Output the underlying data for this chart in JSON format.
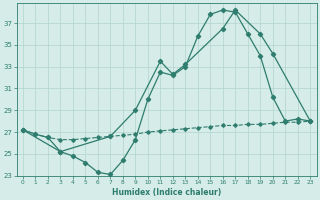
{
  "xlabel": "Humidex (Indice chaleur)",
  "color": "#2e7d6e",
  "bg_color": "#d5ece8",
  "grid_color": "#b0d4cc",
  "ylim": [
    23,
    38
  ],
  "xlim": [
    -0.5,
    23.5
  ],
  "yticks": [
    23,
    25,
    27,
    29,
    31,
    33,
    35,
    37
  ],
  "xticks": [
    0,
    1,
    2,
    3,
    4,
    5,
    6,
    7,
    8,
    9,
    10,
    11,
    12,
    13,
    14,
    15,
    16,
    17,
    18,
    19,
    20,
    21,
    22,
    23
  ],
  "line_flat_x": [
    0,
    1,
    2,
    3,
    4,
    5,
    6,
    7,
    8,
    9,
    10,
    11,
    12,
    13,
    14,
    15,
    16,
    17,
    18,
    19,
    20,
    21,
    22,
    23
  ],
  "line_flat_y": [
    27.2,
    26.8,
    26.5,
    26.3,
    26.3,
    26.4,
    26.5,
    26.6,
    26.7,
    26.8,
    27.0,
    27.1,
    27.2,
    27.3,
    27.4,
    27.5,
    27.6,
    27.6,
    27.7,
    27.7,
    27.8,
    27.9,
    27.9,
    28.0
  ],
  "line_low_x": [
    0,
    1,
    2,
    3,
    4,
    5,
    6,
    7,
    8,
    9,
    10,
    11,
    12,
    13,
    14,
    15,
    16,
    17,
    18,
    19,
    20,
    21,
    22,
    23
  ],
  "line_low_y": [
    27.2,
    26.8,
    26.5,
    25.2,
    24.8,
    24.2,
    23.3,
    23.1,
    24.4,
    26.3,
    30.0,
    32.5,
    32.2,
    33.0,
    35.8,
    37.8,
    38.2,
    38.0,
    36.0,
    34.0,
    30.2,
    28.0,
    28.2,
    28.0
  ],
  "line_upper_x": [
    0,
    3,
    7,
    9,
    11,
    12,
    13,
    16,
    17,
    19,
    20,
    23
  ],
  "line_upper_y": [
    27.2,
    25.2,
    26.6,
    29.0,
    33.5,
    32.3,
    33.2,
    36.5,
    38.2,
    36.0,
    34.2,
    28.0
  ]
}
